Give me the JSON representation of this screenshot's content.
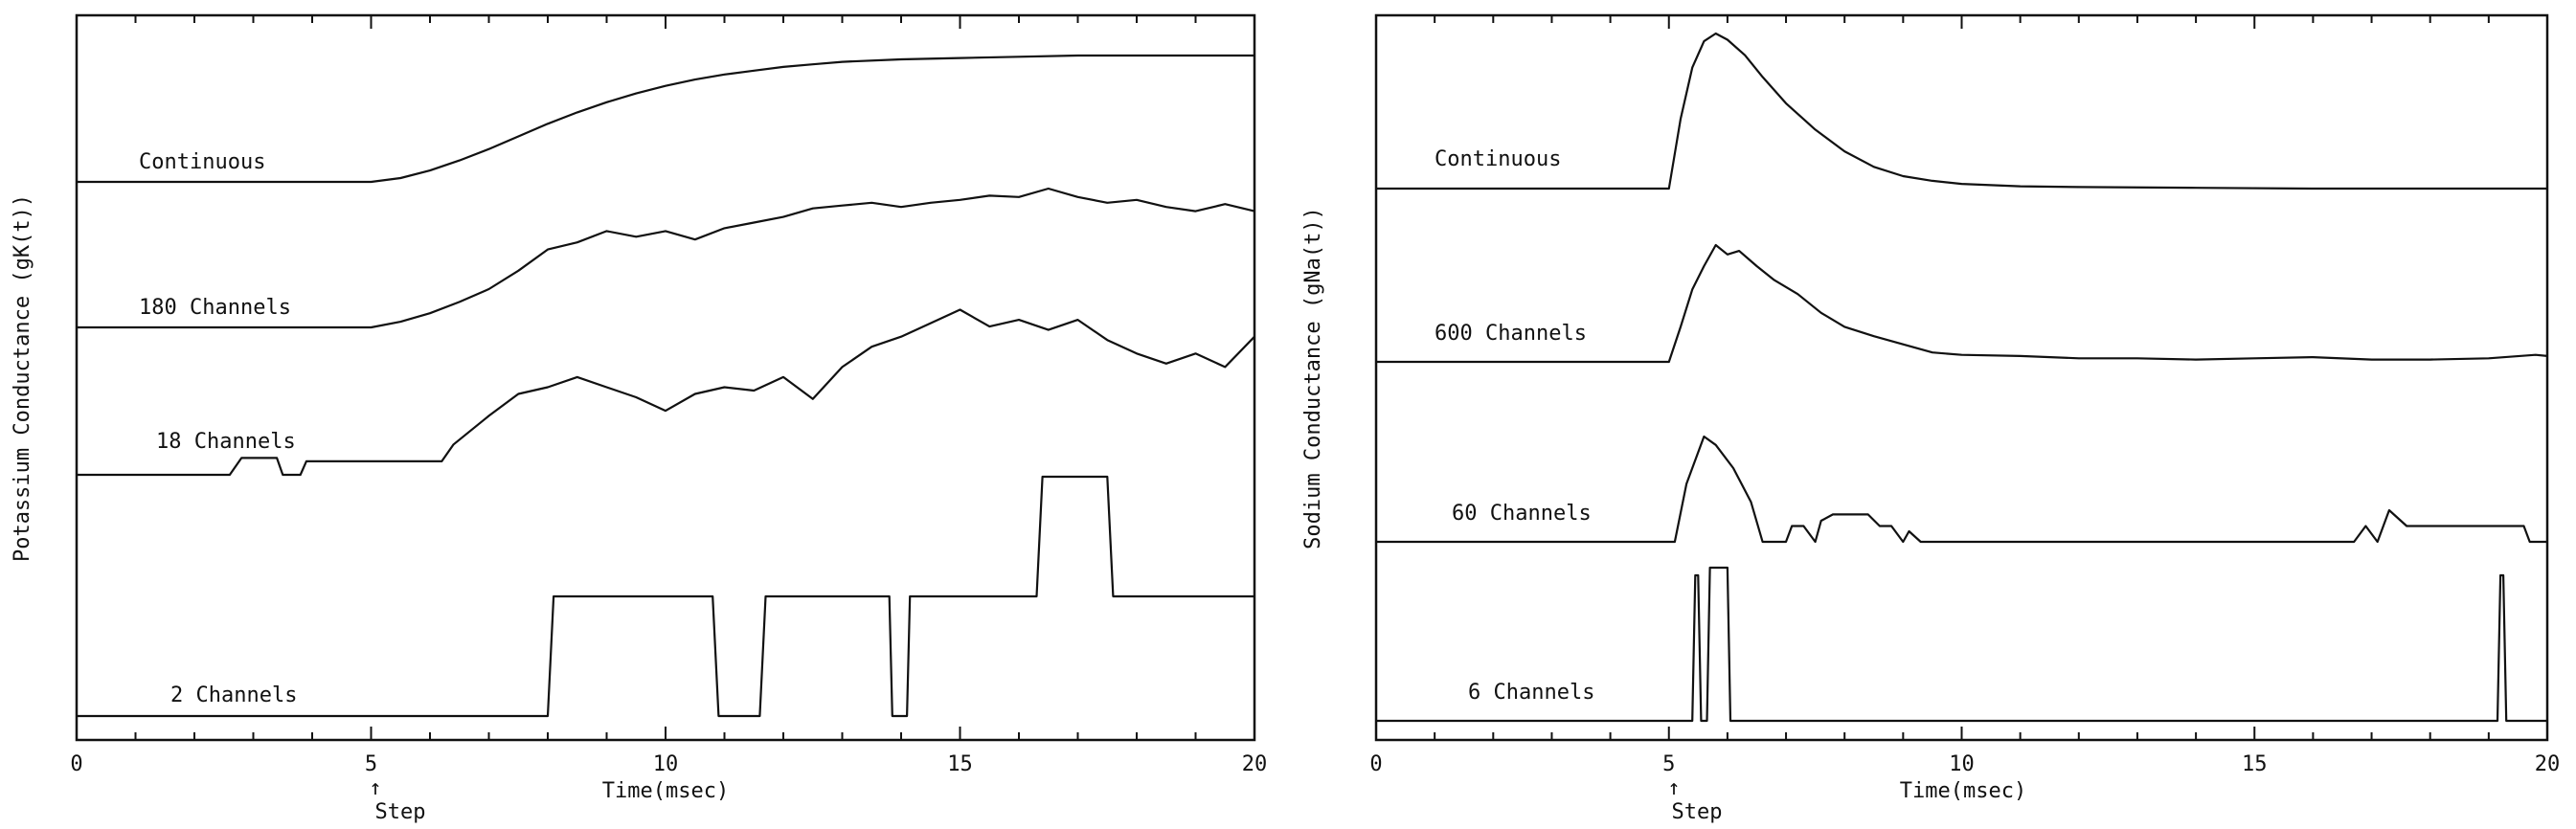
{
  "chart_data": [
    {
      "type": "line",
      "panel": "potassium",
      "ylabel": "Potassium Conductance (gK(t))",
      "xlabel": "Time(msec)",
      "xlim": [
        0,
        20
      ],
      "x_ticks": [
        "0",
        "5",
        "10",
        "15",
        "20"
      ],
      "step_label": "Step",
      "step_arrow": "↑",
      "step_time": 5,
      "series": [
        {
          "name": "Continuous",
          "x": [
            0,
            5,
            5.5,
            6,
            6.5,
            7,
            7.5,
            8,
            8.5,
            9,
            9.5,
            10,
            10.5,
            11,
            11.5,
            12,
            12.5,
            13,
            14,
            15,
            16,
            17,
            18,
            19,
            20
          ],
          "y": [
            0,
            0,
            0.03,
            0.09,
            0.17,
            0.26,
            0.36,
            0.46,
            0.55,
            0.63,
            0.7,
            0.76,
            0.81,
            0.85,
            0.88,
            0.91,
            0.93,
            0.95,
            0.97,
            0.98,
            0.99,
            1.0,
            1.0,
            1.0,
            1.0
          ]
        },
        {
          "name": "180 Channels",
          "x": [
            0,
            5,
            5.5,
            6,
            6.5,
            7,
            7.5,
            8,
            8.5,
            9,
            9.5,
            10,
            10.5,
            11,
            11.5,
            12,
            12.5,
            13,
            13.5,
            14,
            14.5,
            15,
            15.5,
            16,
            16.5,
            17,
            17.5,
            18,
            18.5,
            19,
            19.5,
            20
          ],
          "y": [
            0,
            0,
            0.04,
            0.1,
            0.18,
            0.27,
            0.4,
            0.55,
            0.6,
            0.68,
            0.64,
            0.68,
            0.62,
            0.7,
            0.74,
            0.78,
            0.84,
            0.86,
            0.88,
            0.85,
            0.88,
            0.9,
            0.93,
            0.92,
            0.98,
            0.92,
            0.88,
            0.9,
            0.85,
            0.82,
            0.87,
            0.82
          ]
        },
        {
          "name": "18 Channels",
          "x": [
            0,
            2.6,
            2.8,
            3.4,
            3.5,
            3.8,
            3.9,
            6.2,
            6.4,
            7,
            7.5,
            8,
            8.5,
            9,
            9.5,
            10,
            10.5,
            11,
            11.5,
            12,
            12.5,
            13,
            13.5,
            14,
            14.5,
            15,
            15.5,
            16,
            16.5,
            17,
            17.5,
            18,
            18.5,
            19,
            19.5,
            20
          ],
          "y": [
            0,
            0,
            0.1,
            0.1,
            0.0,
            0.0,
            0.08,
            0.08,
            0.18,
            0.35,
            0.48,
            0.52,
            0.58,
            0.52,
            0.46,
            0.38,
            0.48,
            0.52,
            0.5,
            0.58,
            0.45,
            0.64,
            0.76,
            0.82,
            0.9,
            0.98,
            0.88,
            0.92,
            0.86,
            0.92,
            0.8,
            0.72,
            0.66,
            0.72,
            0.64,
            0.82
          ]
        },
        {
          "name": "2 Channels",
          "x": [
            0,
            8.0,
            8.1,
            10.8,
            10.9,
            11.6,
            11.7,
            13.8,
            13.85,
            14.1,
            14.15,
            16.3,
            16.4,
            17.5,
            17.6,
            20
          ],
          "y": [
            0,
            0,
            1,
            1,
            0,
            0,
            1,
            1,
            0,
            0,
            1,
            1,
            2,
            2,
            1,
            1
          ]
        }
      ]
    },
    {
      "type": "line",
      "panel": "sodium",
      "ylabel": "Sodium Conductance (gNa(t))",
      "xlabel": "Time(msec)",
      "xlim": [
        0,
        20
      ],
      "x_ticks": [
        "0",
        "5",
        "10",
        "15",
        "20"
      ],
      "step_label": "Step",
      "step_arrow": "↑",
      "step_time": 5,
      "series": [
        {
          "name": "Continuous",
          "x": [
            0,
            5,
            5.2,
            5.4,
            5.6,
            5.8,
            6.0,
            6.3,
            6.6,
            7,
            7.5,
            8,
            8.5,
            9,
            9.5,
            10,
            11,
            12,
            14,
            16,
            20
          ],
          "y": [
            0,
            0,
            0.45,
            0.78,
            0.95,
            1.0,
            0.96,
            0.86,
            0.72,
            0.55,
            0.38,
            0.24,
            0.14,
            0.08,
            0.05,
            0.03,
            0.015,
            0.01,
            0.005,
            0.0,
            0.0
          ]
        },
        {
          "name": "600 Channels",
          "x": [
            0,
            5,
            5.2,
            5.4,
            5.6,
            5.8,
            6.0,
            6.2,
            6.5,
            6.8,
            7.2,
            7.6,
            8,
            8.5,
            9,
            9.5,
            10,
            11,
            12,
            13,
            14,
            15,
            16,
            17,
            18,
            19,
            19.8,
            20
          ],
          "y": [
            0,
            0,
            0.3,
            0.62,
            0.82,
            1.0,
            0.92,
            0.95,
            0.82,
            0.7,
            0.58,
            0.42,
            0.3,
            0.22,
            0.15,
            0.08,
            0.06,
            0.05,
            0.03,
            0.03,
            0.02,
            0.03,
            0.04,
            0.02,
            0.02,
            0.03,
            0.06,
            0.05
          ]
        },
        {
          "name": "60 Channels",
          "x": [
            0,
            5.1,
            5.3,
            5.6,
            5.8,
            6.1,
            6.4,
            6.6,
            7.0,
            7.1,
            7.3,
            7.5,
            7.6,
            7.8,
            8.0,
            8.2,
            8.4,
            8.6,
            8.8,
            9.0,
            9.1,
            9.3,
            9.6,
            16.7,
            16.9,
            17.1,
            17.3,
            17.6,
            19.6,
            19.7,
            20
          ],
          "y": [
            0,
            0,
            0.55,
            1.0,
            0.92,
            0.7,
            0.38,
            0.0,
            0.0,
            0.15,
            0.15,
            0.0,
            0.2,
            0.26,
            0.26,
            0.26,
            0.26,
            0.15,
            0.15,
            0.0,
            0.1,
            0.0,
            0.0,
            0.0,
            0.15,
            0.0,
            0.3,
            0.15,
            0.15,
            0.0,
            0.0
          ]
        },
        {
          "name": "6 Channels",
          "x": [
            0,
            5.4,
            5.45,
            5.5,
            5.55,
            5.65,
            5.7,
            6.0,
            6.05,
            19.15,
            19.2,
            19.25,
            19.3,
            20
          ],
          "y": [
            0,
            0,
            0.95,
            0.95,
            0,
            0,
            1,
            1,
            0,
            0,
            0.95,
            0.95,
            0,
            0
          ]
        }
      ]
    }
  ]
}
